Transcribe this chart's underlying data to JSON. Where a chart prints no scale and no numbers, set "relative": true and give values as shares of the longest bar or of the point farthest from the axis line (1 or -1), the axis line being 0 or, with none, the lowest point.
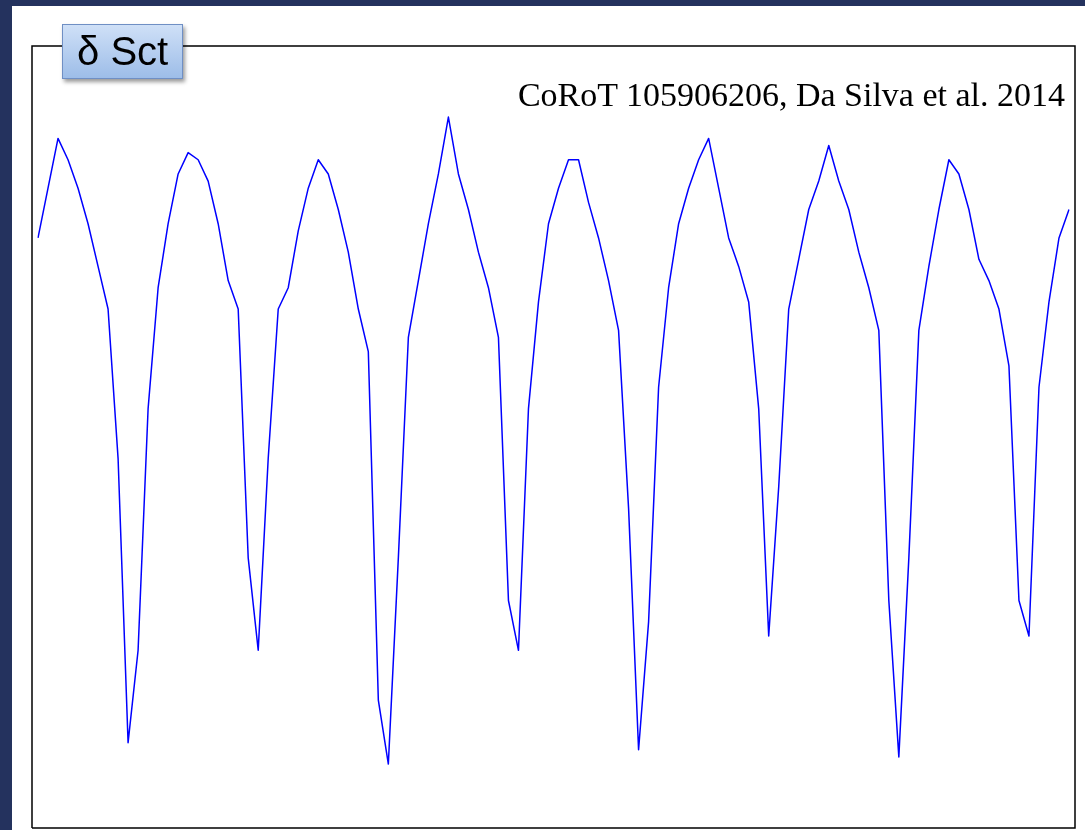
{
  "chart_data": {
    "type": "line",
    "relative": true,
    "legend": false,
    "annotations": [
      "δ Sct",
      "CoRoT 105906206, Da Silva et al. 2014"
    ],
    "categories": [
      null,
      null,
      null,
      null,
      null,
      null,
      null,
      null,
      null,
      null,
      null,
      null,
      null,
      null,
      null,
      null,
      null,
      null,
      null,
      null,
      null,
      null,
      null,
      null,
      null,
      null,
      null,
      null,
      null,
      null,
      null,
      null,
      null,
      null,
      null,
      null,
      null,
      null,
      null,
      null,
      null,
      null,
      null,
      null,
      null,
      null,
      null,
      null,
      null,
      null,
      null,
      null,
      null,
      null,
      null,
      null,
      null,
      null,
      null,
      null,
      null,
      null,
      null,
      null,
      null,
      null,
      null,
      null,
      null,
      null,
      null,
      null,
      null,
      null,
      null,
      null,
      null,
      null,
      null,
      null,
      null,
      null,
      null,
      null,
      null,
      null,
      null,
      null,
      null,
      null,
      null,
      null,
      null,
      null,
      null,
      null,
      null,
      null,
      null,
      null,
      null,
      null,
      null,
      null
    ],
    "series": [
      {
        "color": "#0000ff",
        "values": [
          0.83,
          0.9,
          0.97,
          0.94,
          0.9,
          0.85,
          0.79,
          0.73,
          0.52,
          0.12,
          0.25,
          0.59,
          0.76,
          0.85,
          0.92,
          0.95,
          0.94,
          0.91,
          0.85,
          0.77,
          0.73,
          0.38,
          0.25,
          0.52,
          0.73,
          0.76,
          0.84,
          0.9,
          0.94,
          0.92,
          0.87,
          0.81,
          0.73,
          0.67,
          0.18,
          0.09,
          0.38,
          0.69,
          0.77,
          0.85,
          0.92,
          1,
          0.92,
          0.87,
          0.81,
          0.76,
          0.69,
          0.32,
          0.25,
          0.59,
          0.74,
          0.85,
          0.9,
          0.94,
          0.94,
          0.88,
          0.83,
          0.77,
          0.7,
          0.45,
          0.11,
          0.29,
          0.62,
          0.76,
          0.85,
          0.9,
          0.94,
          0.97,
          0.9,
          0.83,
          0.79,
          0.74,
          0.59,
          0.27,
          0.48,
          0.73,
          0.8,
          0.87,
          0.91,
          0.96,
          0.91,
          0.87,
          0.81,
          0.76,
          0.7,
          0.32,
          0.1,
          0.38,
          0.7,
          0.79,
          0.87,
          0.94,
          0.92,
          0.87,
          0.8,
          0.77,
          0.73,
          0.65,
          0.32,
          0.27,
          0.62,
          0.74,
          0.83,
          0.87
        ]
      }
    ]
  }
}
